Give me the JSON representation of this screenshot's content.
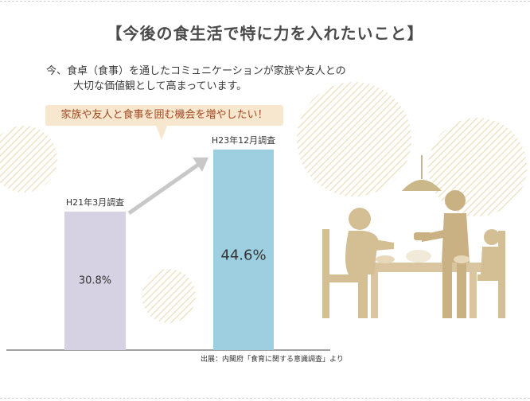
{
  "title": "【今後の食生活で特に力を入れたいこと】",
  "subtitle": {
    "line1": "今、食卓（食事）を通したコミュニケーションが家族や友人との",
    "line2": "大切な価値観として高まっています。"
  },
  "callout": "家族や友人と食事を囲む機会を増やしたい！",
  "source": "出展：内閣府「食育に関する意識調査」より",
  "colors": {
    "bar1": "#d6d1e3",
    "bar2": "#9ecfe0",
    "callout_bg": "#f8e7cf",
    "callout_text": "#a04a22",
    "arrow": "#c8c8c8",
    "illustration": "#d6c19c",
    "illustration_dark": "#bfa57a"
  },
  "chart_data": {
    "type": "bar",
    "categories": [
      "H21年3月調査",
      "H23年12月調査"
    ],
    "values": [
      30.8,
      44.6
    ],
    "value_labels": [
      "30.8%",
      "44.6%"
    ],
    "title": "",
    "xlabel": "",
    "ylabel": "",
    "ylim": [
      0,
      46
    ],
    "grid": false,
    "legend": "none"
  }
}
